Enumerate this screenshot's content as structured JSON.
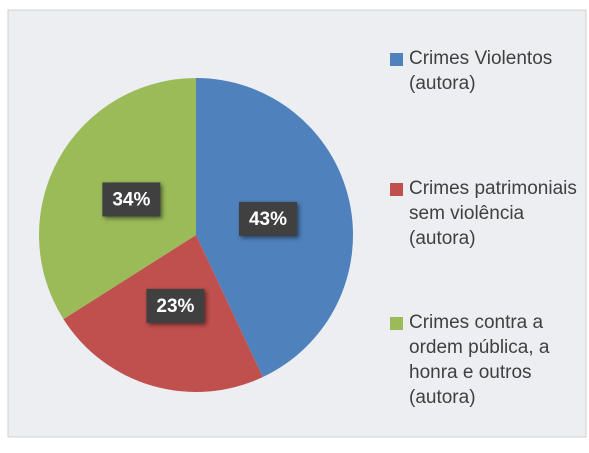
{
  "chart_data": {
    "type": "pie",
    "categories": [
      "Crimes Violentos (autora)",
      "Crimes patrimoniais sem violência (autora)",
      "Crimes contra a ordem pública, a honra e outros (autora)"
    ],
    "values": [
      43,
      23,
      34
    ],
    "value_labels": [
      "43%",
      "23%",
      "34%"
    ],
    "colors": [
      "#4f81bd",
      "#c0504d",
      "#9bbb59"
    ],
    "legend": "right"
  }
}
